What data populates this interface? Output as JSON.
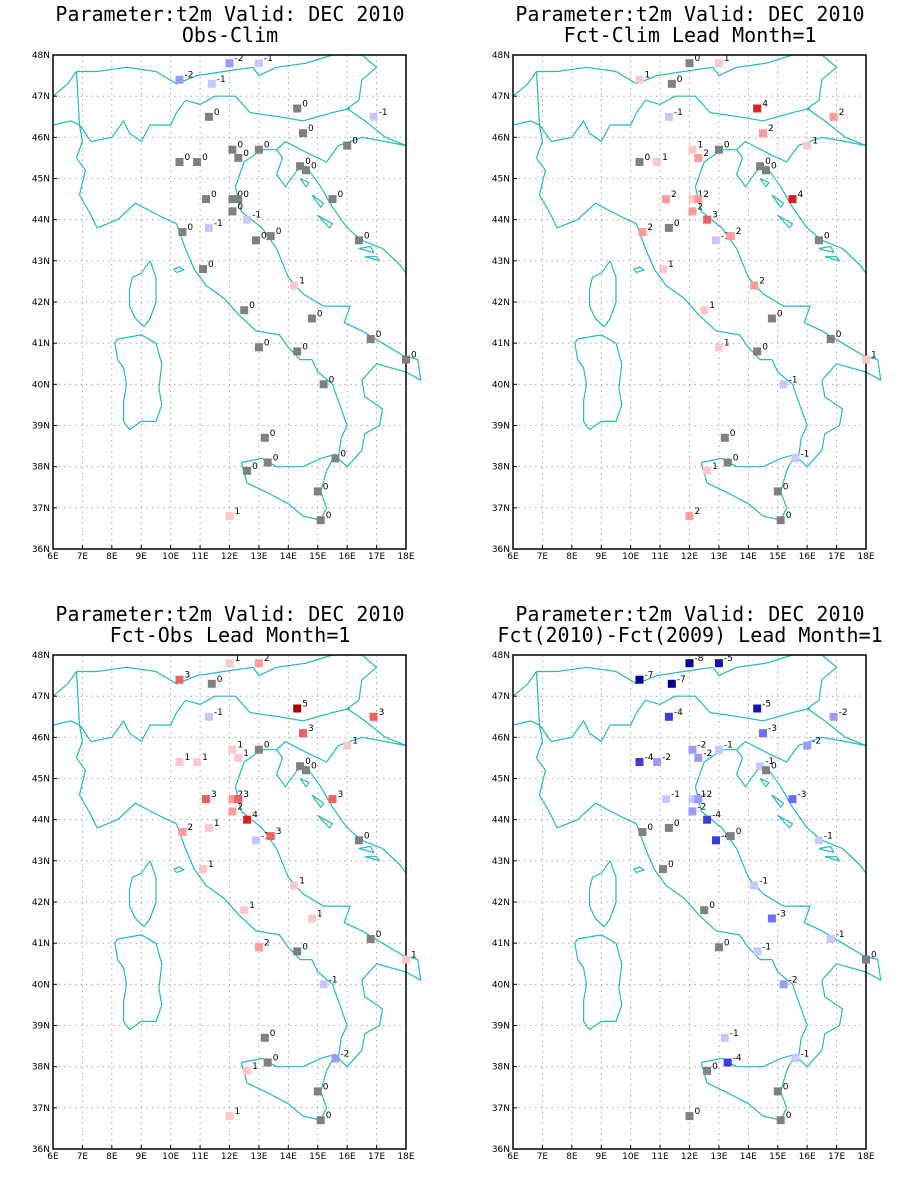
{
  "map": {
    "lon_range": [
      6,
      18
    ],
    "lat_range": [
      36,
      48
    ],
    "lon_ticks": [
      "6E",
      "7E",
      "8E",
      "9E",
      "10E",
      "11E",
      "12E",
      "13E",
      "14E",
      "15E",
      "16E",
      "17E",
      "18E"
    ],
    "lat_ticks": [
      "48N",
      "47N",
      "46N",
      "45N",
      "44N",
      "43N",
      "42N",
      "41N",
      "40N",
      "39N",
      "38N",
      "37N",
      "36N"
    ],
    "coast_color": "#22bbbb",
    "grid_color": "#999999"
  },
  "stations": [
    [
      12.0,
      47.8
    ],
    [
      10.3,
      47.4
    ],
    [
      11.4,
      47.3
    ],
    [
      13.0,
      47.8
    ],
    [
      11.3,
      46.5
    ],
    [
      14.3,
      46.7
    ],
    [
      14.5,
      46.1
    ],
    [
      16.9,
      46.5
    ],
    [
      10.3,
      45.4
    ],
    [
      10.9,
      45.4
    ],
    [
      12.1,
      45.7
    ],
    [
      12.3,
      45.5
    ],
    [
      13.0,
      45.7
    ],
    [
      14.4,
      45.3
    ],
    [
      14.6,
      45.2
    ],
    [
      16.0,
      45.8
    ],
    [
      11.2,
      44.5
    ],
    [
      12.1,
      44.5
    ],
    [
      12.3,
      44.5
    ],
    [
      12.1,
      44.2
    ],
    [
      12.6,
      44.0
    ],
    [
      11.3,
      43.8
    ],
    [
      10.4,
      43.7
    ],
    [
      12.9,
      43.5
    ],
    [
      13.4,
      43.6
    ],
    [
      15.5,
      44.5
    ],
    [
      16.4,
      43.5
    ],
    [
      11.1,
      42.8
    ],
    [
      14.2,
      42.4
    ],
    [
      12.5,
      41.8
    ],
    [
      14.8,
      41.6
    ],
    [
      13.0,
      40.9
    ],
    [
      14.3,
      40.8
    ],
    [
      16.8,
      41.1
    ],
    [
      18.0,
      40.6
    ],
    [
      15.2,
      40.0
    ],
    [
      13.2,
      38.7
    ],
    [
      15.6,
      38.2
    ],
    [
      13.3,
      38.1
    ],
    [
      12.6,
      37.9
    ],
    [
      15.0,
      37.4
    ],
    [
      15.1,
      36.7
    ],
    [
      12.0,
      36.8
    ]
  ],
  "panels": [
    {
      "title1": "Parameter:t2m Valid: DEC 2010",
      "title2": "Obs-Clim",
      "values": [
        "-2",
        "-2",
        "-1",
        "-1",
        "0",
        "0",
        "0",
        "-1",
        "0",
        "0",
        "0",
        "0",
        "0",
        "0",
        "0",
        "0",
        "0",
        "0",
        "0",
        "0",
        "-1",
        "-1",
        "0",
        "0",
        "0",
        "0",
        "0",
        "0",
        "1",
        "0",
        "0",
        "0",
        "0",
        "0",
        "0",
        "0",
        "0",
        "0",
        "0",
        "0",
        "0",
        "0",
        "1"
      ]
    },
    {
      "title1": "Parameter:t2m Valid: DEC 2010",
      "title2": "Fct-Clim Lead Month=1",
      "values": [
        "0",
        "1",
        "0",
        "1",
        "-1",
        "4",
        "2",
        "2",
        "0",
        "1",
        "1",
        "2",
        "0",
        "0",
        "0",
        "1",
        "2",
        "1",
        "2",
        "2",
        "3",
        "0",
        "2",
        "-1",
        "2",
        "4",
        "0",
        "1",
        "2",
        "1",
        "0",
        "1",
        "0",
        "0",
        "1",
        "-1",
        "0",
        "-1",
        "0",
        "1",
        "0",
        "0",
        "2"
      ]
    },
    {
      "title1": "Parameter:t2m Valid: DEC 2010",
      "title2": "Fct-Obs Lead Month=1",
      "values": [
        "1",
        "3",
        "0",
        "2",
        "-1",
        "5",
        "3",
        "3",
        "1",
        "1",
        "1",
        "1",
        "0",
        "0",
        "0",
        "1",
        "3",
        "2",
        "3",
        "2",
        "4",
        "1",
        "2",
        "-1",
        "3",
        "3",
        "0",
        "1",
        "1",
        "1",
        "1",
        "2",
        "0",
        "0",
        "1",
        "-1",
        "0",
        "-2",
        "0",
        "1",
        "0",
        "0",
        "1"
      ]
    },
    {
      "title1": "Parameter:t2m Valid: DEC 2010",
      "title2": "Fct(2010)-Fct(2009) Lead Month=1",
      "values": [
        "-8",
        "-7",
        "-7",
        "-5",
        "-4",
        "-5",
        "-3",
        "-2",
        "-4",
        "-2",
        "-2",
        "-2",
        "-1",
        "-1",
        "0",
        "-2",
        "-1",
        "-1",
        "-2",
        "-2",
        "-4",
        "0",
        "0",
        "-4",
        "0",
        "-3",
        "-1",
        "0",
        "-1",
        "0",
        "-3",
        "0",
        "-1",
        "-1",
        "0",
        "-2",
        "-1",
        "-1",
        "-4",
        "0",
        "0",
        "0",
        "0"
      ]
    }
  ],
  "color_scale": {
    "neg": [
      "#c8c8ff",
      "#9b9bff",
      "#6e6ef8",
      "#3c3cd8",
      "#1414a8",
      "#000090"
    ],
    "zero": "#808080",
    "pos": [
      "#ffc8c8",
      "#ff9b9b",
      "#f06060",
      "#d82020",
      "#a80000",
      "#800000"
    ]
  }
}
